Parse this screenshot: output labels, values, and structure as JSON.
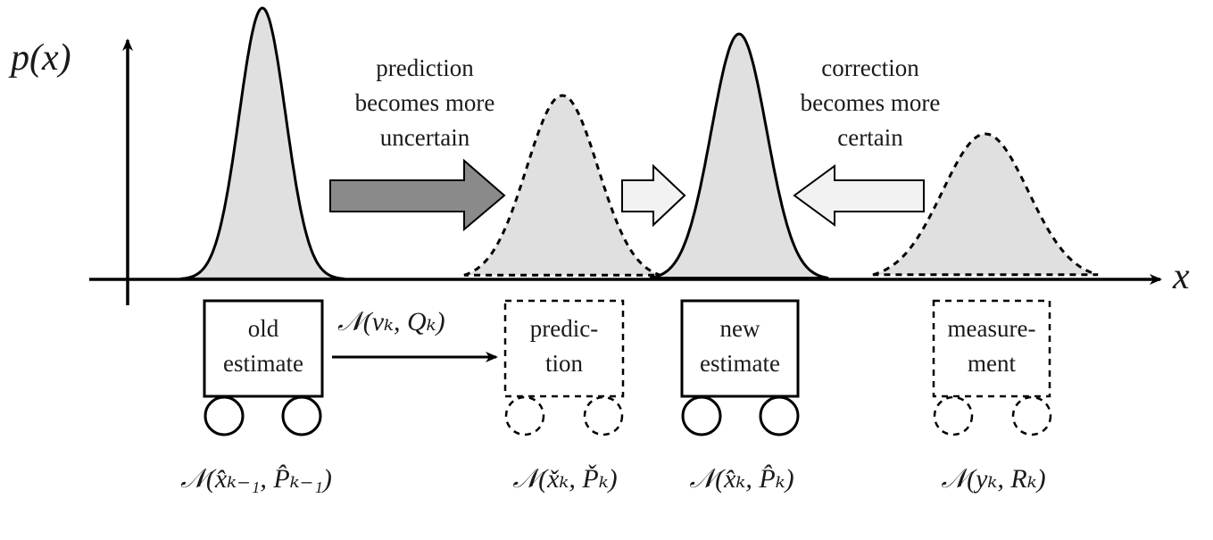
{
  "axes": {
    "y_label": "p(x)",
    "x_label": "x"
  },
  "annotations": {
    "prediction": [
      "prediction",
      "becomes more",
      "uncertain"
    ],
    "correction": [
      "correction",
      "becomes more",
      "certain"
    ]
  },
  "carts": {
    "old": {
      "lines": [
        "old",
        "estimate"
      ],
      "distribution": "𝒩(x̂ₖ₋₁, P̂ₖ₋₁)"
    },
    "prediction": {
      "lines": [
        "predic-",
        "tion"
      ],
      "distribution": "𝒩(x̌ₖ, P̌ₖ)"
    },
    "new": {
      "lines": [
        "new",
        "estimate"
      ],
      "distribution": "𝒩(x̂ₖ, P̂ₖ)"
    },
    "measurement": {
      "lines": [
        "measure-",
        "ment"
      ],
      "distribution": "𝒩(yₖ, Rₖ)"
    }
  },
  "transition_label": "𝒩(vₖ, Qₖ)",
  "colors": {
    "fill": "#e0e0e0",
    "dark_arrow": "#8a8a8a",
    "light_arrow": "#f2f2f2",
    "stroke": "#000000"
  }
}
